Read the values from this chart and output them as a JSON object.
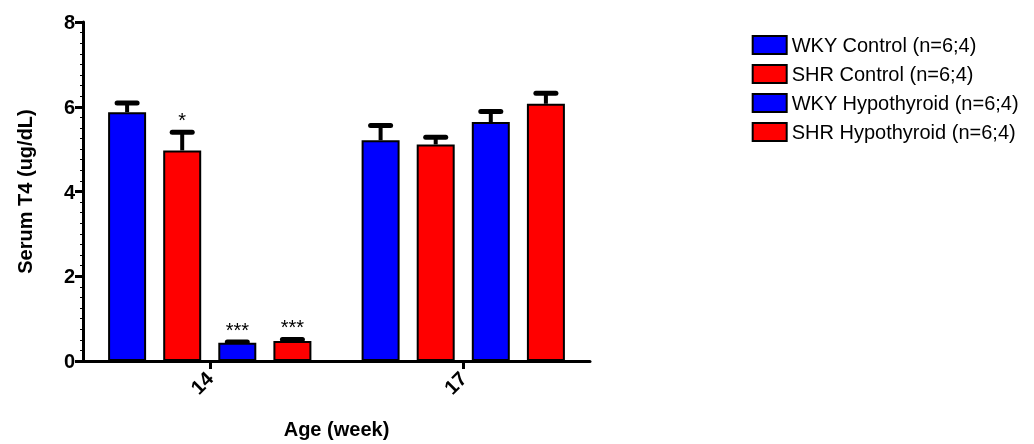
{
  "chart_data": {
    "type": "bar",
    "xlabel": "Age (week)",
    "ylabel": "Serum T4 (ug/dL)",
    "categories": [
      "14",
      "17"
    ],
    "series": [
      {
        "name": "WKY Control (n=6;4)",
        "color": "#0000ff",
        "values": [
          5.87,
          5.21
        ],
        "errors": [
          [
            5.87,
            6.09
          ],
          [
            5.21,
            5.56
          ]
        ]
      },
      {
        "name": "SHR Control (n=6;4)",
        "color": "#ff0000",
        "values": [
          4.97,
          5.11
        ],
        "errors": [
          [
            4.97,
            5.4
          ],
          [
            5.11,
            5.28
          ]
        ],
        "value_labels": [
          "*",
          null
        ]
      },
      {
        "name": "WKY Hypothyroid (n=6;4)",
        "color": "#0000ff",
        "values": [
          0.43,
          5.64
        ],
        "errors": [
          [
            0.43,
            0.45
          ],
          [
            5.64,
            5.89
          ]
        ],
        "value_labels": [
          "***",
          null
        ]
      },
      {
        "name": "SHR Hypothyroid (n=6;4)",
        "color": "#ff0000",
        "values": [
          0.47,
          6.07
        ],
        "errors": [
          [
            0.47,
            0.51
          ],
          [
            6.07,
            6.32
          ]
        ],
        "value_labels": [
          "***",
          null
        ]
      }
    ],
    "ylim": [
      0,
      8
    ],
    "yticks": [
      0,
      2,
      4,
      6,
      8
    ],
    "grid": false,
    "legend": "right"
  }
}
